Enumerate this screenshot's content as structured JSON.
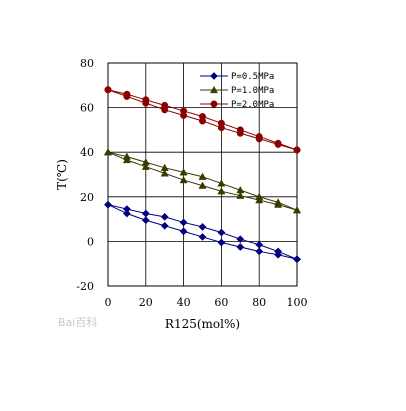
{
  "chart_data": {
    "type": "line",
    "xlabel": "R125(mol%)",
    "ylabel": "T(℃)",
    "xlim": [
      0,
      100
    ],
    "ylim": [
      -20,
      80
    ],
    "xticks": [
      0,
      20,
      40,
      60,
      80,
      100
    ],
    "yticks": [
      -20,
      0,
      20,
      40,
      60,
      80
    ],
    "grid": true,
    "legend_position": "top-right",
    "series": [
      {
        "name": "P=0.5MPa",
        "color": "#000080",
        "marker": "diamond",
        "upper": {
          "x": [
            0,
            10,
            20,
            30,
            40,
            50,
            60,
            70,
            80,
            90,
            100
          ],
          "y": [
            16.5,
            14.5,
            12.5,
            11,
            8.5,
            6.5,
            4,
            1,
            -1.5,
            -4.5,
            -8
          ]
        },
        "lower": {
          "x": [
            0,
            10,
            20,
            30,
            40,
            50,
            60,
            70,
            80,
            90,
            100
          ],
          "y": [
            16.5,
            12.5,
            9.5,
            7,
            4.5,
            2,
            -0.5,
            -2.5,
            -4.5,
            -6,
            -8
          ]
        }
      },
      {
        "name": "P=1.0MPa",
        "color": "#3a3a00",
        "marker": "triangle",
        "upper": {
          "x": [
            0,
            10,
            20,
            30,
            40,
            50,
            60,
            70,
            80,
            90,
            100
          ],
          "y": [
            40,
            38,
            35.5,
            33,
            31,
            29,
            26,
            23,
            20,
            17.5,
            14
          ]
        },
        "lower": {
          "x": [
            0,
            10,
            20,
            30,
            40,
            50,
            60,
            70,
            80,
            90,
            100
          ],
          "y": [
            40,
            36.5,
            33.5,
            30.5,
            27.5,
            25,
            22.5,
            20.5,
            18.5,
            16.5,
            14
          ]
        }
      },
      {
        "name": "P=2.0MPa",
        "color": "#8b0000",
        "marker": "circle",
        "upper": {
          "x": [
            0,
            10,
            20,
            30,
            40,
            50,
            60,
            70,
            80,
            90,
            100
          ],
          "y": [
            68,
            66,
            63.5,
            61,
            58.5,
            56,
            53,
            50,
            47,
            44,
            41
          ]
        },
        "lower": {
          "x": [
            0,
            10,
            20,
            30,
            40,
            50,
            60,
            70,
            80,
            90,
            100
          ],
          "y": [
            68,
            65,
            62,
            59,
            56.5,
            54,
            51,
            48.5,
            46,
            43.5,
            41
          ]
        }
      }
    ]
  },
  "watermark_text": "Bai百科"
}
